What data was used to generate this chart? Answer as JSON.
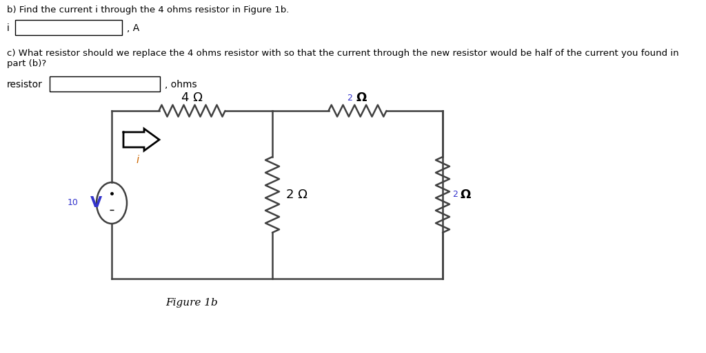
{
  "bg_color": "#ffffff",
  "line_color": "#404040",
  "line_width": 1.8,
  "title_b": "b) Find the current i through the 4 ohms resistor in Figure 1b.",
  "label_i": "i",
  "label_A": ", A",
  "title_c": "c) What resistor should we replace the 4 ohms resistor with so that the current through the new resistor would be half of the current you found in\npart (b)?",
  "label_resistor": "resistor",
  "label_ohms": ", ohms",
  "figure_caption": "Figure 1b",
  "voltage_label": "10",
  "voltage_V": "V",
  "resistor_4_label": "4 Ω",
  "resistor_2_top_label": "Ω",
  "resistor_2_top_prefix": "2",
  "resistor_2_mid_label": "2 Ω",
  "resistor_2_right_prefix": "2",
  "resistor_2_right_label": "Ω",
  "current_i_label": "i",
  "arrow_color": "#000000",
  "i_label_color": "#cc6600",
  "label_color_blue": "#3333cc"
}
